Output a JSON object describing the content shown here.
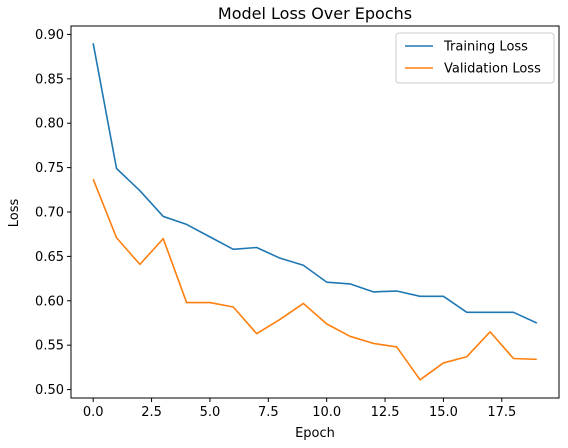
{
  "chart_data": {
    "type": "line",
    "title": "Model Loss Over Epochs",
    "xlabel": "Epoch",
    "ylabel": "Loss",
    "xlim": [
      -0.95,
      19.95
    ],
    "ylim": [
      0.4905,
      0.9095
    ],
    "xticks": [
      0.0,
      2.5,
      5.0,
      7.5,
      10.0,
      12.5,
      15.0,
      17.5
    ],
    "xtick_labels": [
      "0.0",
      "2.5",
      "5.0",
      "7.5",
      "10.0",
      "12.5",
      "15.0",
      "17.5"
    ],
    "yticks": [
      0.5,
      0.55,
      0.6,
      0.65,
      0.7,
      0.75,
      0.8,
      0.85,
      0.9
    ],
    "ytick_labels": [
      "0.50",
      "0.55",
      "0.60",
      "0.65",
      "0.70",
      "0.75",
      "0.80",
      "0.85",
      "0.90"
    ],
    "grid": false,
    "legend_position": "top-right",
    "x": [
      0,
      1,
      2,
      3,
      4,
      5,
      6,
      7,
      8,
      9,
      10,
      11,
      12,
      13,
      14,
      15,
      16,
      17,
      18,
      19
    ],
    "series": [
      {
        "name": "Training Loss",
        "color": "#1f77b4",
        "values": [
          0.89,
          0.749,
          0.724,
          0.695,
          0.686,
          0.672,
          0.658,
          0.66,
          0.648,
          0.64,
          0.621,
          0.619,
          0.61,
          0.611,
          0.605,
          0.605,
          0.587,
          0.587,
          0.587,
          0.575
        ]
      },
      {
        "name": "Validation Loss",
        "color": "#ff7f0e",
        "values": [
          0.737,
          0.671,
          0.641,
          0.67,
          0.598,
          0.598,
          0.593,
          0.563,
          0.579,
          0.597,
          0.574,
          0.56,
          0.552,
          0.548,
          0.511,
          0.53,
          0.537,
          0.565,
          0.535,
          0.534
        ]
      }
    ]
  }
}
